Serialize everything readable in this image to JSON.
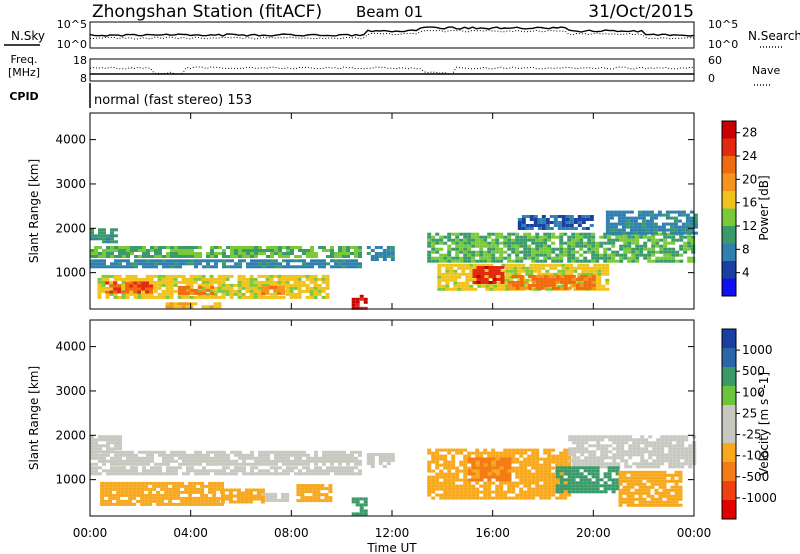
{
  "header": {
    "station": "Zhongshan Station (fitACF)",
    "beam": "Beam 01",
    "date": "31/Oct/2015"
  },
  "noise_panel": {
    "left_label": "N.Sky",
    "right_label": "N.Search",
    "ticks_left": [
      "10^5",
      "10^0"
    ],
    "ticks_right": [
      "10^5",
      "10^0"
    ]
  },
  "freq_panel": {
    "label_top": "Freq.",
    "label_bottom": "[MHz]",
    "ticks_left": [
      "18",
      "8"
    ],
    "ticks_right": [
      "60",
      "0"
    ],
    "right_label": "Nave"
  },
  "cpid": {
    "label": "CPID",
    "text": "normal (fast stereo) 153"
  },
  "colors": {
    "power": [
      "#1010f0",
      "#1a3fa0",
      "#2f7fb0",
      "#3a9a6a",
      "#79c93a",
      "#f2c21c",
      "#f5941c",
      "#f06a12",
      "#e22a10",
      "#c80000"
    ],
    "velocity": [
      "#e00000",
      "#f04010",
      "#f57c14",
      "#f8a81c",
      "#c8c8c0",
      "#c8c8c0",
      "#6cc43a",
      "#3a9a6a",
      "#2a66a8",
      "#1a3fa0"
    ]
  },
  "chart_data": [
    {
      "type": "heatmap",
      "title": "Power",
      "xlabel": "Time UT",
      "ylabel": "Slant Range [km]",
      "xlim": [
        "00:00",
        "24:00"
      ],
      "ylim": [
        180,
        4600
      ],
      "x_ticks": [
        "00:00",
        "04:00",
        "08:00",
        "12:00",
        "16:00",
        "20:00",
        "00:00"
      ],
      "y_ticks": [
        "1000",
        "2000",
        "3000",
        "4000"
      ],
      "colorbar": {
        "label": "Power [dB]",
        "range": [
          0,
          30
        ],
        "ticks": [
          "4",
          "8",
          "12",
          "16",
          "20",
          "24",
          "28"
        ]
      },
      "regions": [
        {
          "t": [
            0.0,
            10.8
          ],
          "r": [
            1350,
            1600
          ],
          "value": 12
        },
        {
          "t": [
            0.0,
            10.8
          ],
          "r": [
            1100,
            1300
          ],
          "value": 8
        },
        {
          "t": [
            0.0,
            1.0
          ],
          "r": [
            1700,
            2000
          ],
          "value": 10
        },
        {
          "t": [
            0.3,
            9.5
          ],
          "r": [
            450,
            950
          ],
          "value": 16
        },
        {
          "t": [
            0.6,
            2.4
          ],
          "r": [
            550,
            800
          ],
          "value": 24
        },
        {
          "t": [
            3.5,
            4.8
          ],
          "r": [
            500,
            700
          ],
          "value": 22
        },
        {
          "t": [
            6.8,
            7.6
          ],
          "r": [
            500,
            700
          ],
          "value": 20
        },
        {
          "t": [
            3.0,
            5.2
          ],
          "r": [
            220,
            330
          ],
          "value": 18
        },
        {
          "t": [
            10.4,
            10.9
          ],
          "r": [
            220,
            500
          ],
          "value": 28
        },
        {
          "t": [
            11.0,
            12.0
          ],
          "r": [
            1300,
            1600
          ],
          "value": 8
        },
        {
          "t": [
            13.4,
            24.0
          ],
          "r": [
            1250,
            1900
          ],
          "value": 12
        },
        {
          "t": [
            13.8,
            20.5
          ],
          "r": [
            600,
            1200
          ],
          "value": 16
        },
        {
          "t": [
            15.2,
            16.4
          ],
          "r": [
            800,
            1150
          ],
          "value": 26
        },
        {
          "t": [
            16.6,
            20.0
          ],
          "r": [
            650,
            950
          ],
          "value": 22
        },
        {
          "t": [
            20.5,
            24.0
          ],
          "r": [
            1900,
            2400
          ],
          "value": 8
        },
        {
          "t": [
            17.0,
            20.0
          ],
          "r": [
            2000,
            2300
          ],
          "value": 6
        }
      ]
    },
    {
      "type": "heatmap",
      "title": "Velocity",
      "xlabel": "Time UT",
      "ylabel": "Slant Range [km]",
      "xlim": [
        "00:00",
        "24:00"
      ],
      "ylim": [
        180,
        4600
      ],
      "x_ticks": [
        "00:00",
        "04:00",
        "08:00",
        "12:00",
        "16:00",
        "20:00",
        "00:00"
      ],
      "y_ticks": [
        "1000",
        "2000",
        "3000",
        "4000"
      ],
      "colorbar": {
        "label": "Velocity [m s^-1]",
        "ticks": [
          "1000",
          "500",
          "100",
          "25",
          "-25",
          "-100",
          "-500",
          "-1000"
        ]
      },
      "regions": [
        {
          "t": [
            0.0,
            10.8
          ],
          "r": [
            1350,
            1650
          ],
          "value": 0
        },
        {
          "t": [
            0.0,
            10.8
          ],
          "r": [
            1100,
            1300
          ],
          "value": 10
        },
        {
          "t": [
            0.0,
            1.2
          ],
          "r": [
            1650,
            2000
          ],
          "value": 0
        },
        {
          "t": [
            0.4,
            5.2
          ],
          "r": [
            450,
            950
          ],
          "value": -250
        },
        {
          "t": [
            5.2,
            6.8
          ],
          "r": [
            500,
            800
          ],
          "value": -120
        },
        {
          "t": [
            6.8,
            7.8
          ],
          "r": [
            500,
            700
          ],
          "value": 5
        },
        {
          "t": [
            8.2,
            9.6
          ],
          "r": [
            500,
            900
          ],
          "value": -200
        },
        {
          "t": [
            10.4,
            10.9
          ],
          "r": [
            220,
            600
          ],
          "value": 400
        },
        {
          "t": [
            11.0,
            12.0
          ],
          "r": [
            1300,
            1600
          ],
          "value": 0
        },
        {
          "t": [
            13.4,
            19.0
          ],
          "r": [
            600,
            1700
          ],
          "value": -300
        },
        {
          "t": [
            15.0,
            16.6
          ],
          "r": [
            1000,
            1500
          ],
          "value": -600
        },
        {
          "t": [
            19.0,
            24.0
          ],
          "r": [
            1300,
            2000
          ],
          "value": 0
        },
        {
          "t": [
            18.5,
            21.0
          ],
          "r": [
            700,
            1300
          ],
          "value": 150
        },
        {
          "t": [
            21.0,
            23.5
          ],
          "r": [
            400,
            1200
          ],
          "value": -450
        }
      ]
    }
  ]
}
